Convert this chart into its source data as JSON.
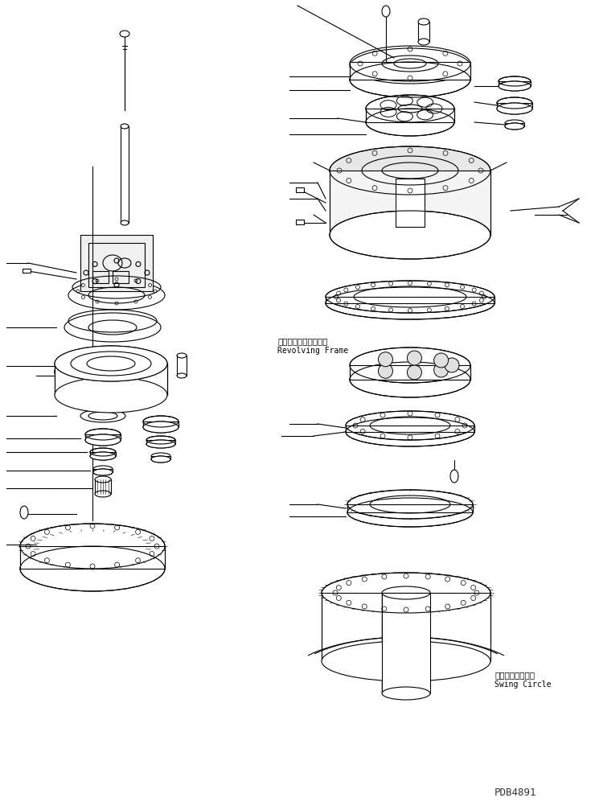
{
  "title": "",
  "background_color": "#ffffff",
  "line_color": "#000000",
  "text_color": "#000000",
  "label1_jp": "レボルビングフレーム",
  "label1_en": "Revolving Frame",
  "label2_jp": "スイングサークル",
  "label2_en": "Swing Circle",
  "watermark": "PDB4891",
  "fig_width": 7.4,
  "fig_height": 10.07
}
